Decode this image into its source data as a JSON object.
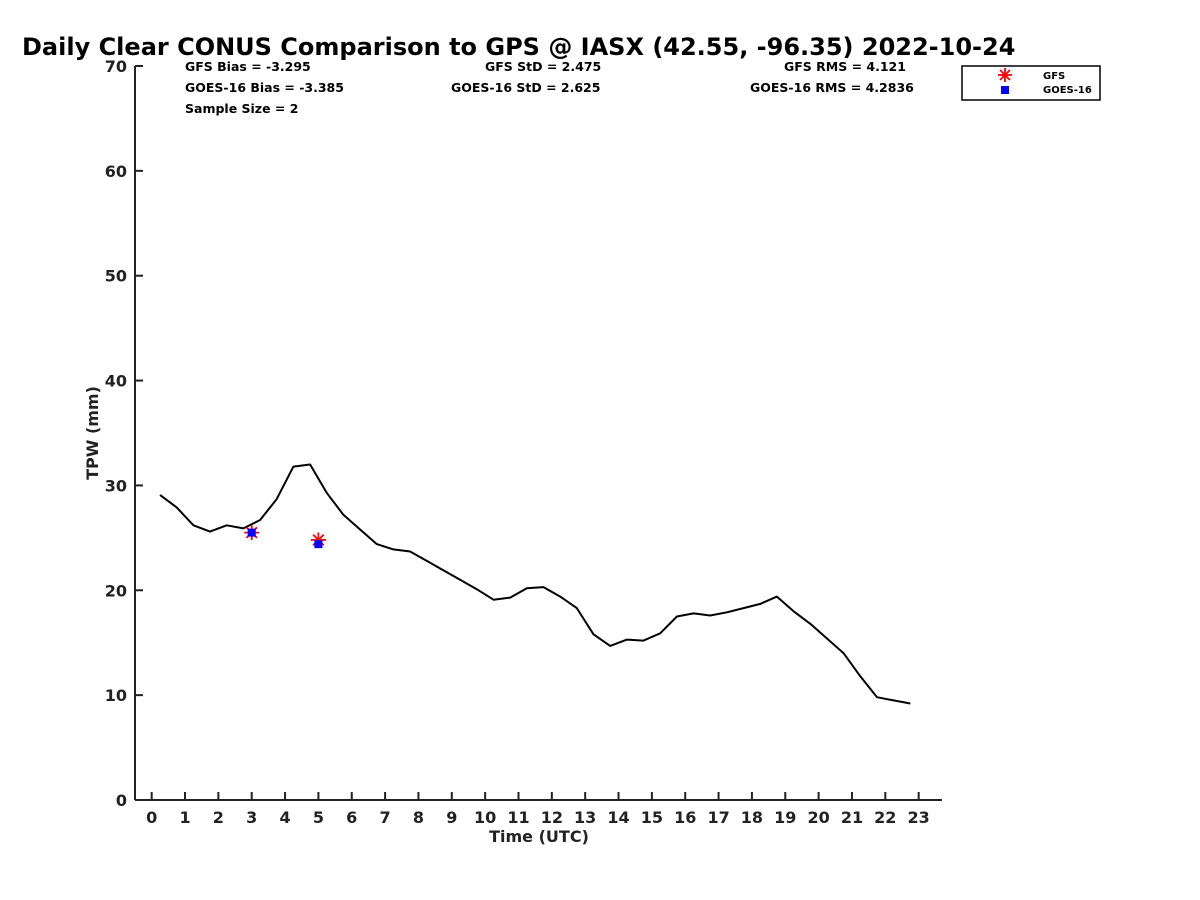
{
  "chart_data": {
    "type": "line",
    "title": "Daily Clear CONUS Comparison to GPS @ IASX (42.55, -96.35) 2022-10-24",
    "xlabel": "Time (UTC)",
    "ylabel": "TPW (mm)",
    "xlim": [
      -0.5,
      23.7
    ],
    "ylim": [
      0,
      70
    ],
    "x_ticks": [
      "0",
      "1",
      "2",
      "3",
      "4",
      "5",
      "6",
      "7",
      "8",
      "9",
      "10",
      "11",
      "12",
      "13",
      "14",
      "15",
      "16",
      "17",
      "18",
      "19",
      "20",
      "21",
      "22",
      "23"
    ],
    "y_ticks": [
      "0",
      "10",
      "20",
      "30",
      "40",
      "50",
      "60",
      "70"
    ],
    "grid": false,
    "legend_position": "top-right",
    "stats": {
      "gfs_bias": "GFS Bias = -3.295",
      "goes_bias": "GOES-16 Bias = -3.385",
      "sample_size": "Sample Size = 2",
      "gfs_std": "GFS StD = 2.475",
      "goes_std": "GOES-16 StD = 2.625",
      "gfs_rms": "GFS RMS = 4.121",
      "goes_rms": "GOES-16 RMS = 4.2836"
    },
    "series": [
      {
        "kind": "line",
        "color": "#000000",
        "x": [
          0.25,
          0.75,
          1.25,
          1.75,
          2.25,
          2.75,
          3.25,
          3.75,
          4.25,
          4.75,
          5.25,
          5.75,
          6.25,
          6.75,
          7.25,
          7.75,
          8.25,
          8.75,
          9.25,
          9.75,
          10.25,
          10.75,
          11.25,
          11.75,
          12.25,
          12.75,
          13.25,
          13.75,
          14.25,
          14.75,
          15.25,
          15.75,
          16.25,
          16.75,
          17.25,
          17.75,
          18.25,
          18.75,
          19.25,
          19.75,
          20.25,
          20.75,
          21.25,
          21.75,
          22.25,
          22.75
        ],
        "y": [
          29.1,
          27.9,
          26.2,
          25.6,
          26.2,
          25.9,
          26.7,
          28.7,
          31.8,
          32.0,
          29.3,
          27.2,
          25.8,
          24.4,
          23.9,
          23.7,
          22.8,
          21.9,
          21.0,
          20.1,
          19.1,
          19.3,
          20.2,
          20.3,
          19.4,
          18.3,
          15.8,
          14.7,
          15.3,
          15.2,
          15.9,
          17.5,
          17.8,
          17.6,
          17.9,
          18.3,
          18.7,
          19.4,
          18.0,
          16.8,
          15.4,
          14.0,
          11.8,
          9.8,
          9.5,
          9.2
        ]
      },
      {
        "name": "GFS",
        "kind": "scatter",
        "marker": "asterisk",
        "color": "#ff0000",
        "x": [
          3.0,
          5.0
        ],
        "y": [
          25.5,
          24.8
        ]
      },
      {
        "name": "GOES-16",
        "kind": "scatter",
        "marker": "square",
        "color": "#0000ff",
        "x": [
          3.0,
          5.0
        ],
        "y": [
          25.5,
          24.4
        ]
      }
    ]
  }
}
